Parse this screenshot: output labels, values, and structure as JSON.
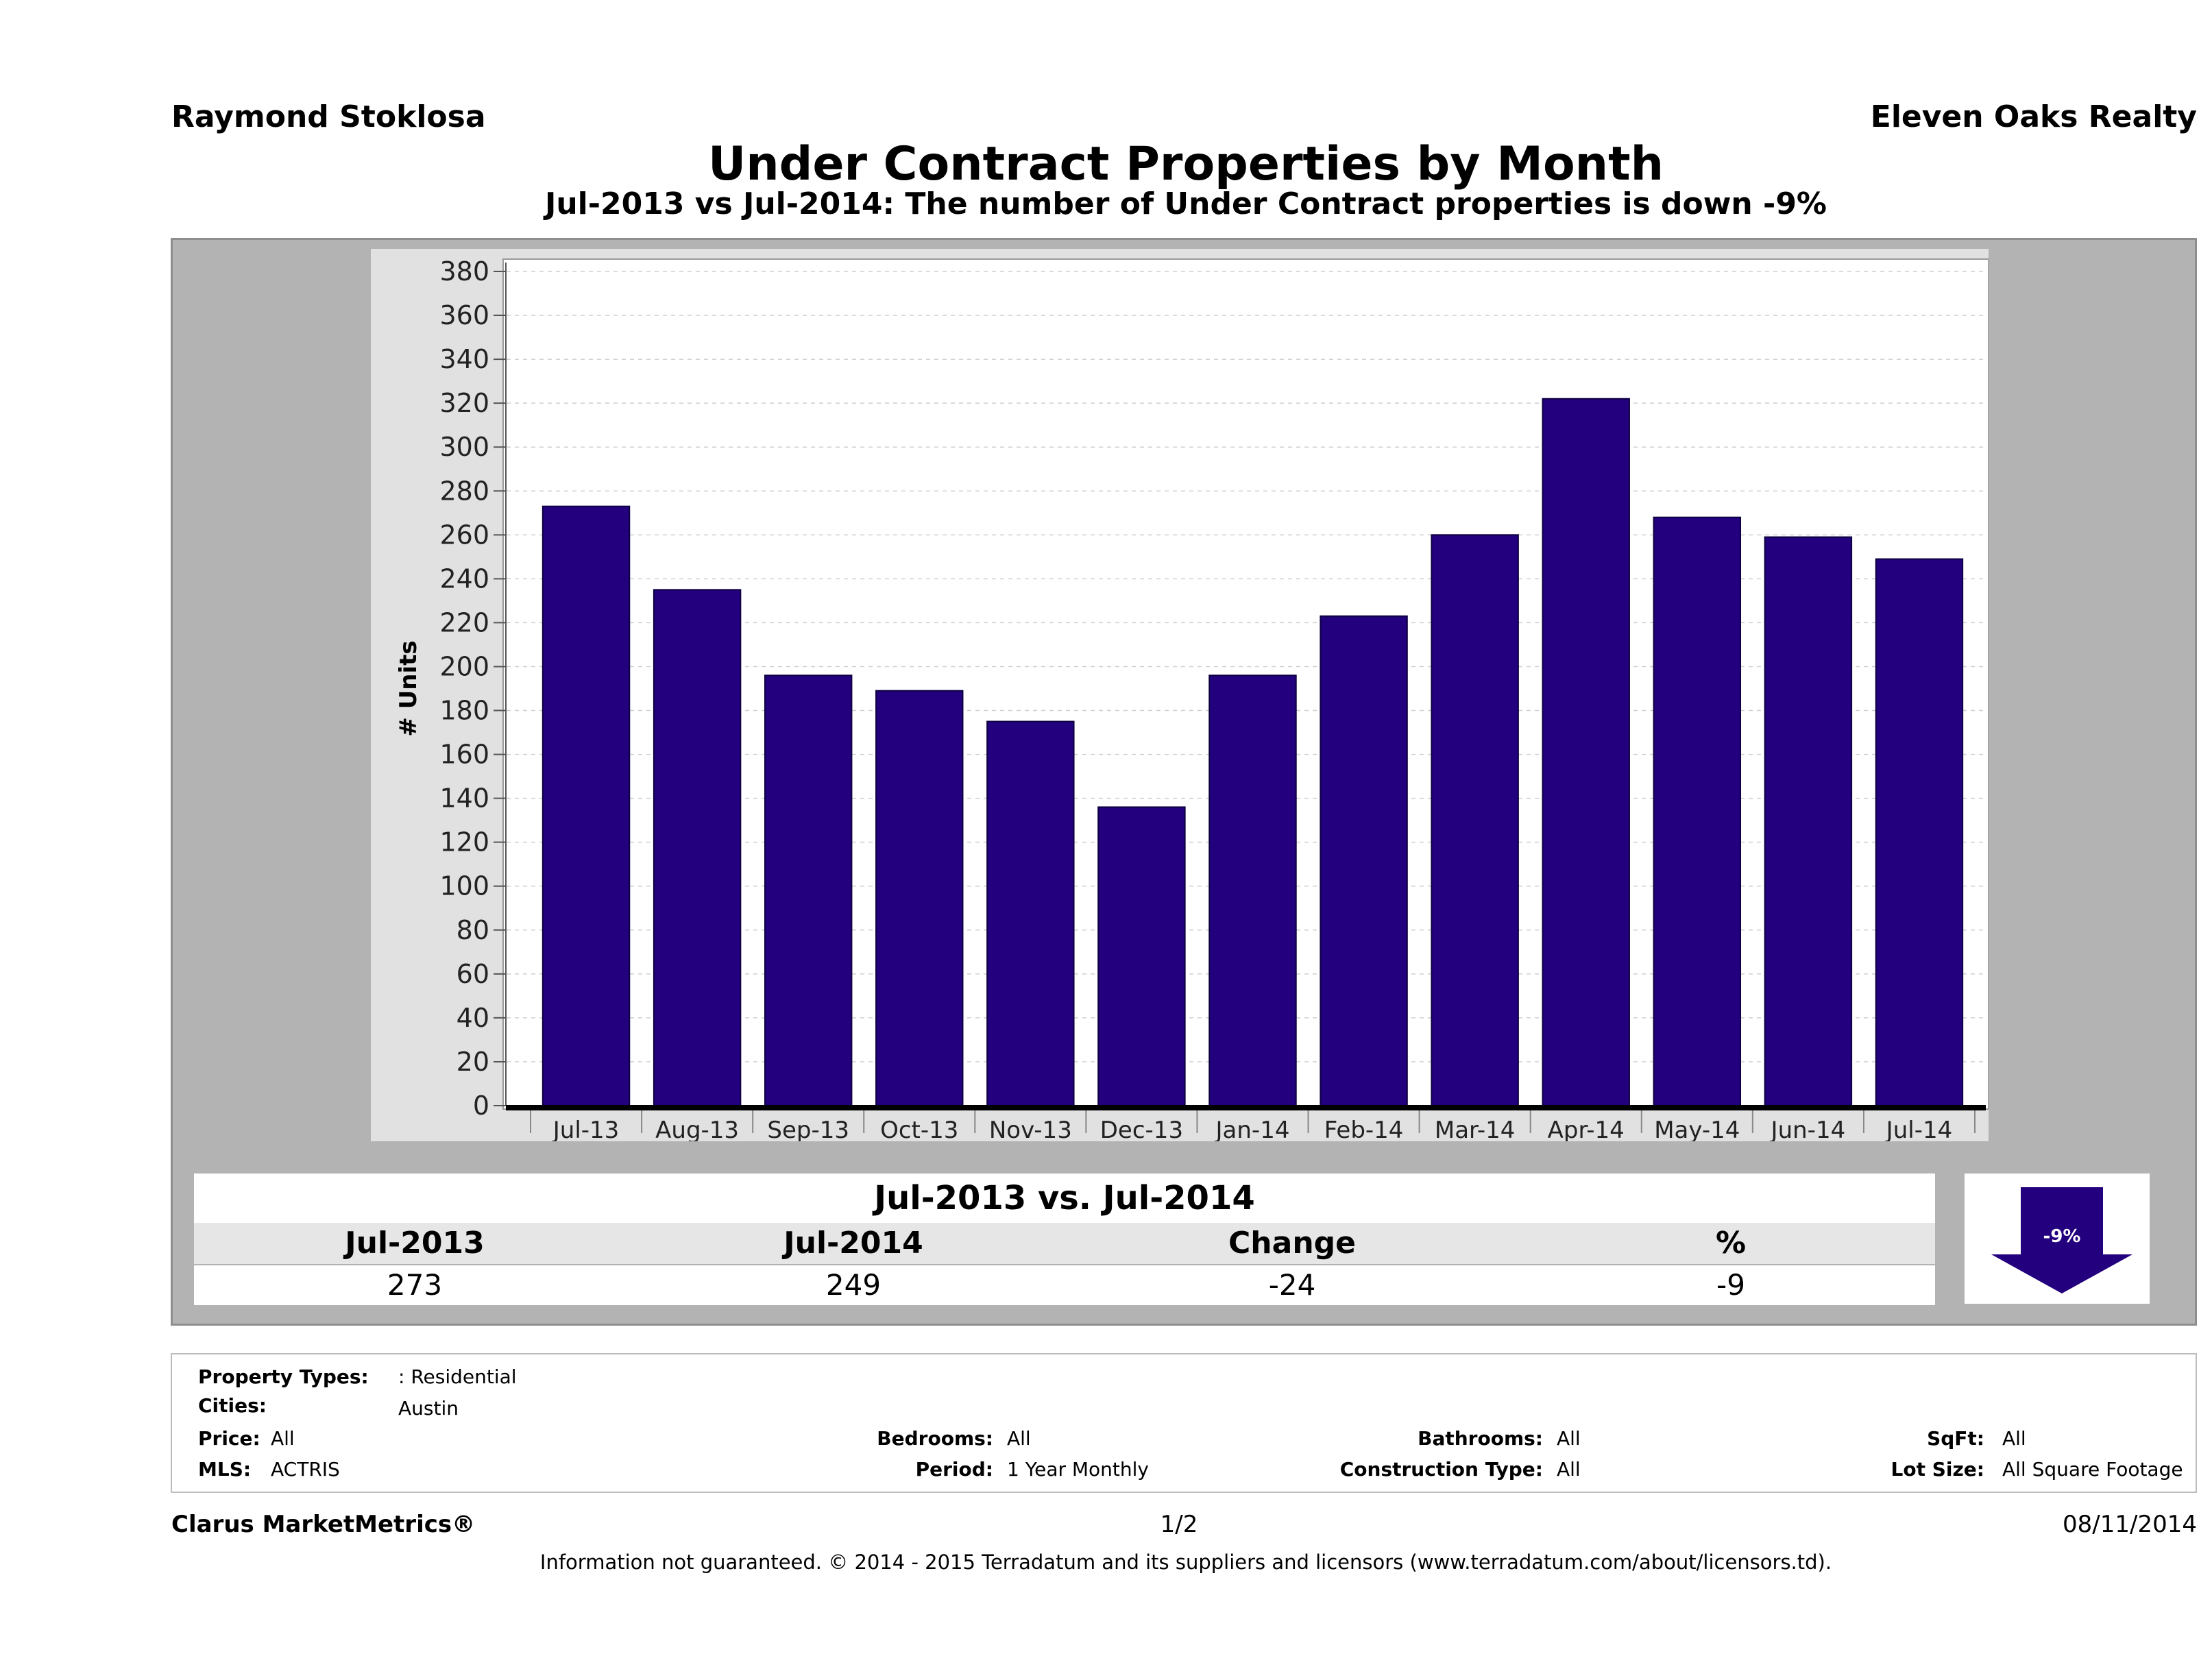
{
  "header": {
    "agent": "Raymond Stoklosa",
    "company": "Eleven Oaks Realty",
    "title": "Under Contract Properties by Month",
    "subtitle": "Jul-2013 vs Jul-2014: The number of Under Contract  properties is down -9%"
  },
  "chart_data": {
    "type": "bar",
    "categories": [
      "Jul-13",
      "Aug-13",
      "Sep-13",
      "Oct-13",
      "Nov-13",
      "Dec-13",
      "Jan-14",
      "Feb-14",
      "Mar-14",
      "Apr-14",
      "May-14",
      "Jun-14",
      "Jul-14"
    ],
    "values": [
      273,
      235,
      196,
      189,
      175,
      136,
      196,
      223,
      260,
      322,
      268,
      259,
      249
    ],
    "ylabel": "# Units",
    "ylim": [
      0,
      380
    ],
    "yticks": [
      0,
      20,
      40,
      60,
      80,
      100,
      120,
      140,
      160,
      180,
      200,
      220,
      240,
      260,
      280,
      300,
      320,
      340,
      360,
      380
    ],
    "grid": true,
    "bar_color": "#23007e"
  },
  "comparison": {
    "title": "Jul-2013 vs. Jul-2014",
    "headers": [
      "Jul-2013",
      "Jul-2014",
      "Change",
      "%"
    ],
    "values": [
      "273",
      "249",
      "-24",
      "-9"
    ],
    "badge": "-9%",
    "badge_color": "#23007e"
  },
  "params": {
    "property_types_label": "Property Types:",
    "property_types": ": Residential",
    "cities_label": "Cities:",
    "cities": "Austin",
    "price_label": "Price:",
    "price": "All",
    "mls_label": "MLS:",
    "mls": "ACTRIS",
    "bedrooms_label": "Bedrooms:",
    "bedrooms": "All",
    "period_label": "Period:",
    "period": "1 Year Monthly",
    "bathrooms_label": "Bathrooms:",
    "bathrooms": "All",
    "construction_label": "Construction Type:",
    "construction": "All",
    "sqft_label": "SqFt:",
    "sqft": "All",
    "lotsize_label": "Lot Size:",
    "lotsize": "All Square Footage"
  },
  "footer": {
    "brand": "Clarus MarketMetrics®",
    "page": "1/2",
    "date": "08/11/2014",
    "disclaimer": "Information not guaranteed. © 2014 - 2015 Terradatum and its suppliers and licensors (www.terradatum.com/about/licensors.td)."
  }
}
